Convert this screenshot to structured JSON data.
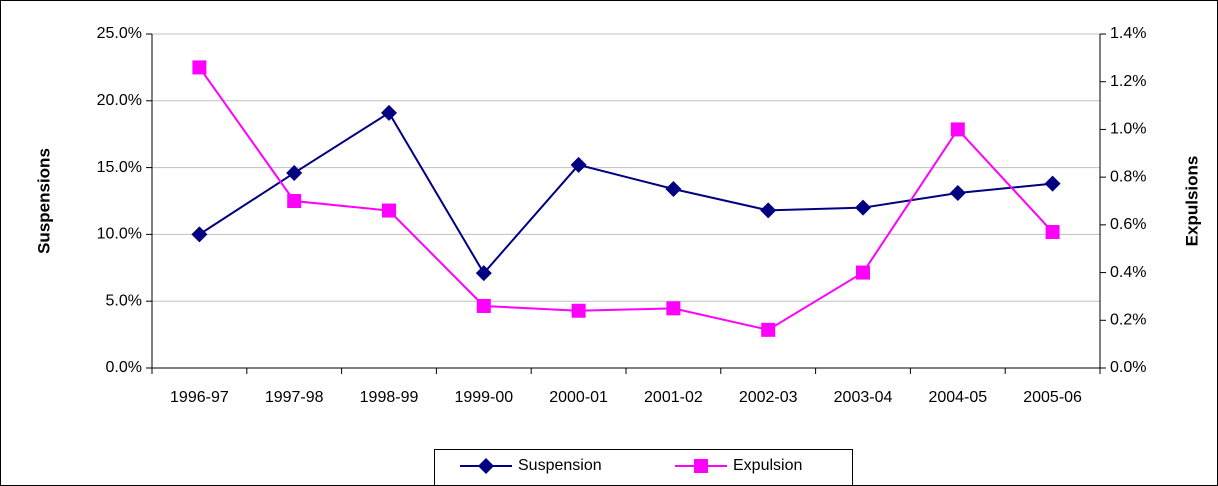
{
  "chart_data": {
    "type": "line",
    "categories": [
      "1996-97",
      "1997-98",
      "1998-99",
      "1999-00",
      "2000-01",
      "2001-02",
      "2002-03",
      "2003-04",
      "2004-05",
      "2005-06"
    ],
    "y_label": "Suspensions",
    "y2_label": "Expulsions",
    "series": [
      {
        "name": "Suspension",
        "color": "#000080",
        "marker": "diamond",
        "values": [
          10.0,
          14.6,
          19.1,
          7.1,
          15.2,
          13.4,
          11.8,
          12.0,
          13.1,
          13.8
        ]
      },
      {
        "name": "Expulsion",
        "color": "#ff00ff",
        "marker": "square",
        "axis": "y2",
        "values": [
          1.26,
          0.7,
          0.66,
          0.26,
          0.24,
          0.25,
          0.16,
          0.4,
          1.0,
          0.57
        ]
      }
    ],
    "ylim": [
      0,
      25
    ],
    "yticks": [
      {
        "value": 0,
        "label": "0.0%"
      },
      {
        "value": 5,
        "label": "5.0%"
      },
      {
        "value": 10,
        "label": "10.0%"
      },
      {
        "value": 15,
        "label": "15.0%"
      },
      {
        "value": 20,
        "label": "20.0%"
      },
      {
        "value": 25,
        "label": "25.0%"
      }
    ],
    "y2lim": [
      0,
      1.4
    ],
    "y2ticks": [
      {
        "value": 0,
        "label": "0.0%"
      },
      {
        "value": 0.2,
        "label": "0.2%"
      },
      {
        "value": 0.4,
        "label": "0.4%"
      },
      {
        "value": 0.6,
        "label": "0.6%"
      },
      {
        "value": 0.8,
        "label": "0.8%"
      },
      {
        "value": 1.0,
        "label": "1.0%"
      },
      {
        "value": 1.2,
        "label": "1.2%"
      },
      {
        "value": 1.4,
        "label": "1.4%"
      }
    ],
    "grid": true,
    "legend": "bottom"
  }
}
